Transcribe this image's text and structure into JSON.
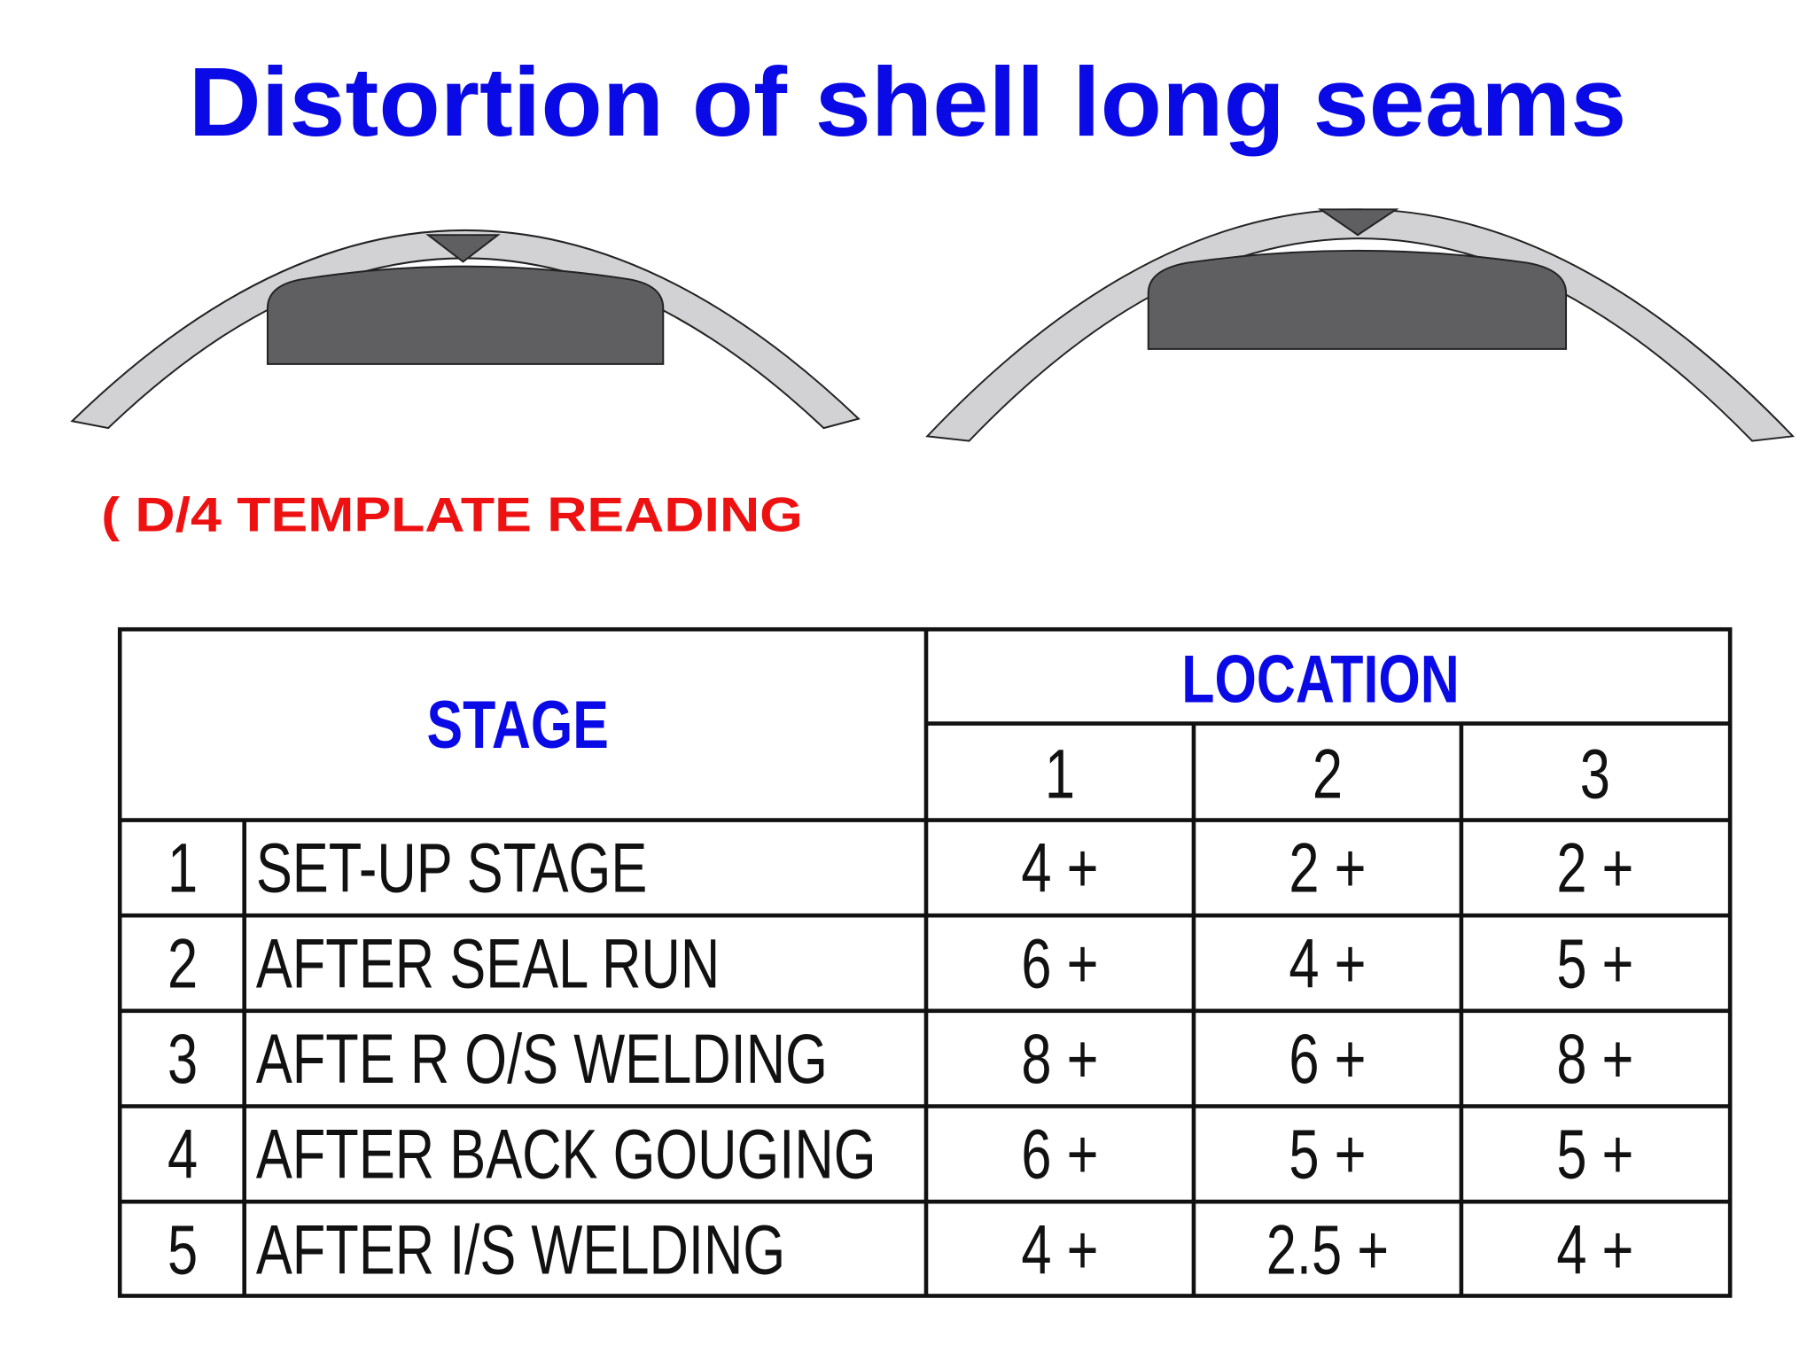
{
  "title": "Distortion of shell long seams",
  "subtitle": "( D/4 TEMPLATE READING",
  "table": {
    "stage_header": "STAGE",
    "location_header": "LOCATION",
    "locations": [
      "1",
      "2",
      "3"
    ],
    "rows": [
      [
        "1",
        "SET-UP STAGE",
        "4 +",
        "2 +",
        "2 +"
      ],
      [
        "2",
        "AFTER SEAL RUN",
        "6 +",
        "4 +",
        "5 +"
      ],
      [
        "3",
        "AFTE R O/S WELDING",
        "8 +",
        "6 +",
        "8 +"
      ],
      [
        "4",
        "AFTER BACK GOUGING",
        "6 +",
        "5 +",
        "5 +"
      ],
      [
        "5",
        "AFTER I/S WELDING",
        "4 +",
        "2.5 +",
        "4 +"
      ]
    ]
  }
}
